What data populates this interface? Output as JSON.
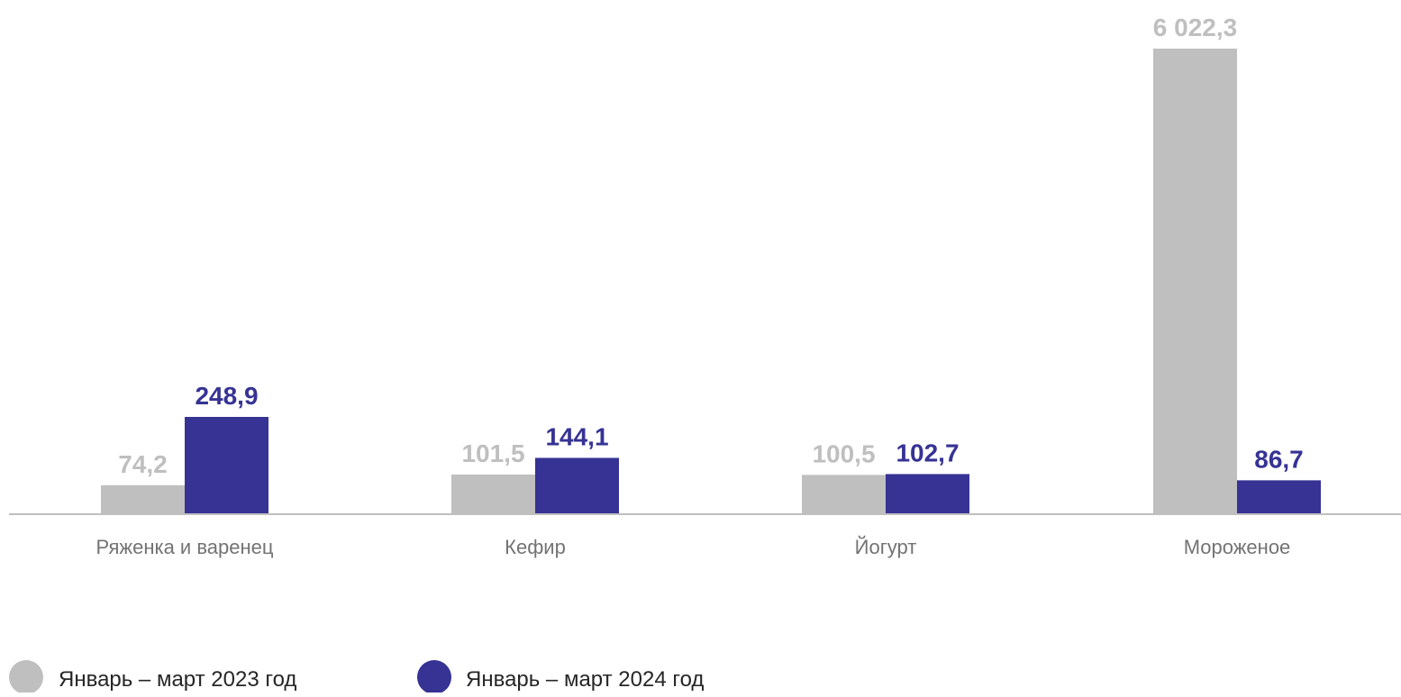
{
  "chart_data": {
    "type": "bar",
    "categories": [
      "Ряженка и варенец",
      "Кефир",
      "Йогурт",
      "Мороженое"
    ],
    "series": [
      {
        "name": "Январь – март 2023 год",
        "values": [
          74.2,
          101.5,
          100.5,
          6022.3
        ],
        "labels": [
          "74,2",
          "101,5",
          "100,5",
          "6 022,3"
        ],
        "color": "#bfbfbf"
      },
      {
        "name": "Январь – март 2024 год",
        "values": [
          248.9,
          144.1,
          102.7,
          86.7
        ],
        "labels": [
          "248,9",
          "144,1",
          "102,7",
          "86,7"
        ],
        "color": "#363394"
      }
    ],
    "title": "",
    "xlabel": "",
    "ylabel": "",
    "grid": false,
    "legend_position": "bottom-left",
    "axis_color": "#bfbfbf"
  }
}
